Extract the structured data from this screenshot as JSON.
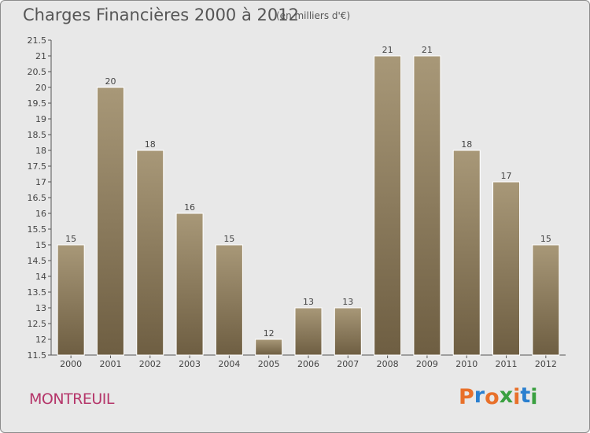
{
  "header": {
    "title": "Charges Financières 2000 à 2012",
    "unit": "(en milliers d'€)"
  },
  "footer": {
    "city": "MONTREUIL",
    "logo": "Proxiti"
  },
  "colors": {
    "background": "#e8e8e8",
    "bar_top": "#a89878",
    "bar_bottom": "#6e5e42",
    "city": "#b5366a",
    "logo_letters": [
      "#e8702a",
      "#2a7fcf",
      "#e8702a",
      "#3aa040",
      "#e8702a",
      "#2a7fcf",
      "#3aa040"
    ]
  },
  "chart_data": {
    "type": "bar",
    "categories": [
      "2000",
      "2001",
      "2002",
      "2003",
      "2004",
      "2005",
      "2006",
      "2007",
      "2008",
      "2009",
      "2010",
      "2011",
      "2012"
    ],
    "values": [
      15,
      20,
      18,
      16,
      15,
      12,
      13,
      13,
      21,
      21,
      18,
      17,
      15
    ],
    "data_labels": [
      "15",
      "20",
      "18",
      "16",
      "15",
      "12",
      "13",
      "13",
      "21",
      "21",
      "18",
      "17",
      "15"
    ],
    "title": "Charges Financières 2000 à 2012",
    "xlabel": "",
    "ylabel": "",
    "ylim": [
      11.5,
      21.5
    ],
    "yticks": [
      11.5,
      12,
      12.5,
      13,
      13.5,
      14,
      14.5,
      15,
      15.5,
      16,
      16.5,
      17,
      17.5,
      18,
      18.5,
      19,
      19.5,
      20,
      20.5,
      21,
      21.5
    ],
    "ytick_labels": [
      "11.5",
      "12",
      "12.5",
      "13",
      "13.5",
      "14",
      "14.5",
      "15",
      "15.5",
      "16",
      "16.5",
      "17",
      "17.5",
      "18",
      "18.5",
      "19",
      "19.5",
      "20",
      "20.5",
      "21",
      "21.5"
    ],
    "grid": false,
    "legend": "none"
  }
}
